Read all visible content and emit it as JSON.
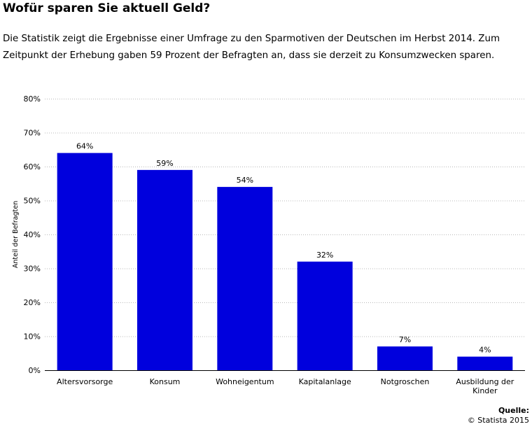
{
  "page": {
    "title": "Wofür sparen Sie aktuell Geld?",
    "description": "Die Statistik zeigt die Ergebnisse einer Umfrage zu den Sparmotiven der Deutschen im Herbst 2014. Zum Zeitpunkt der Erhebung gaben 59 Prozent der Befragten an, dass sie derzeit zu Konsumzwecken sparen.",
    "source_label": "Quelle:",
    "source_text": "© Statista 2015"
  },
  "colors": {
    "bar": "#0000dd",
    "grid": "#b8b8b8",
    "axis": "#000000"
  },
  "chart_data": {
    "type": "bar",
    "categories": [
      "Altersvorsorge",
      "Konsum",
      "Wohneigentum",
      "Kapitalanlage",
      "Notgroschen",
      "Ausbildung der Kinder"
    ],
    "category_lines": [
      [
        "Altersvorsorge"
      ],
      [
        "Konsum"
      ],
      [
        "Wohneigentum"
      ],
      [
        "Kapitalanlage"
      ],
      [
        "Notgroschen"
      ],
      [
        "Ausbildung der",
        "Kinder"
      ]
    ],
    "values": [
      64,
      59,
      54,
      32,
      7,
      4
    ],
    "value_labels": [
      "64%",
      "59%",
      "54%",
      "32%",
      "7%",
      "4%"
    ],
    "ylabel": "Anteil der Befragten",
    "xlabel": "",
    "ylim": [
      0,
      80
    ],
    "y_ticks": [
      0,
      10,
      20,
      30,
      40,
      50,
      60,
      70,
      80
    ],
    "y_tick_labels": [
      "0%",
      "10%",
      "20%",
      "30%",
      "40%",
      "50%",
      "60%",
      "70%",
      "80%"
    ],
    "grid": true,
    "legend": "none"
  }
}
